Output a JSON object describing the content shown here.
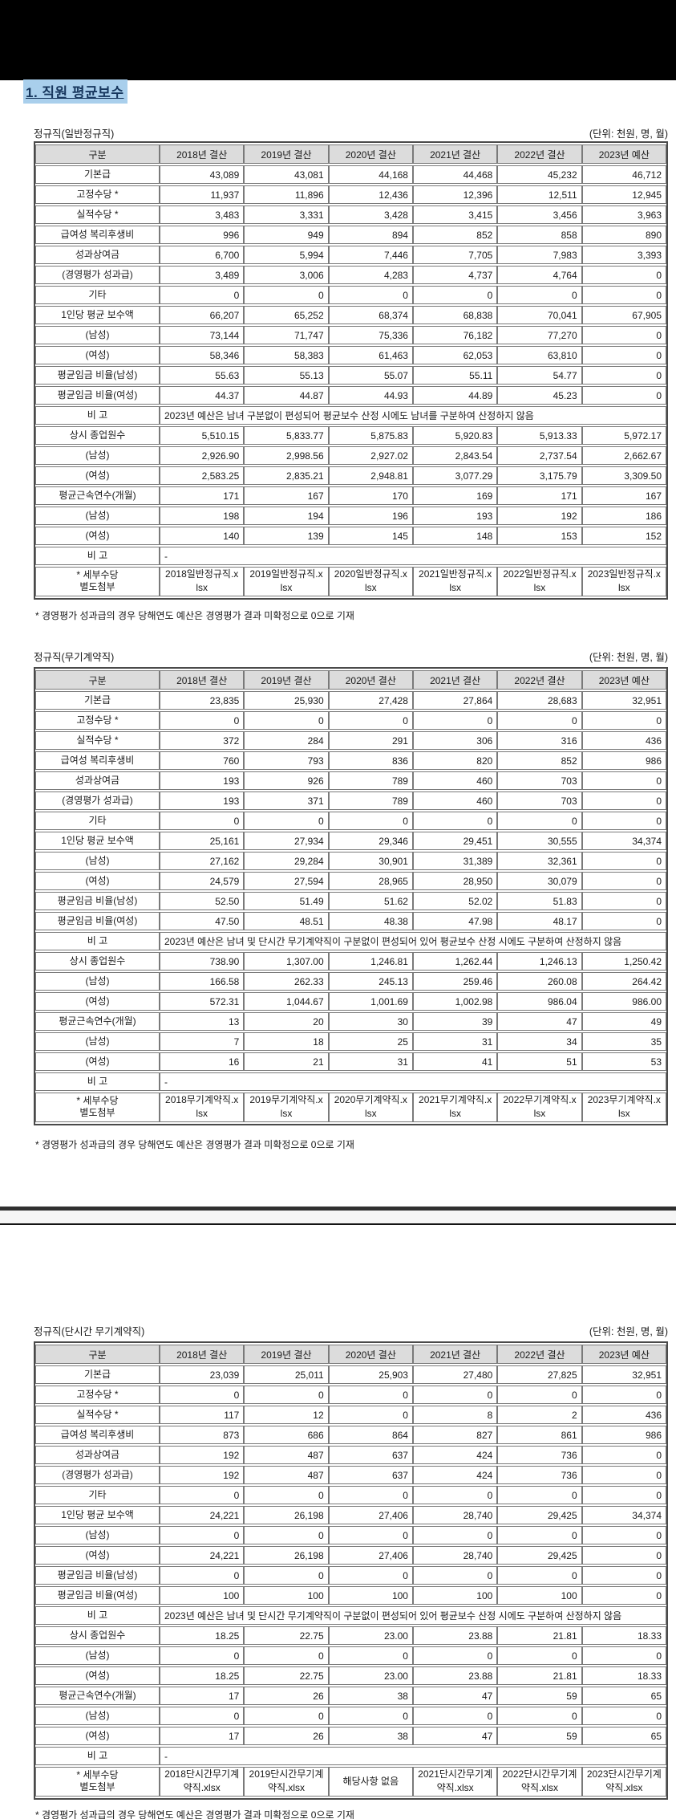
{
  "page": {
    "title": "1. 직원 평균보수",
    "unit_label": "(단위: 천원, 명, 월)",
    "footnote": "* 경영평가 성과급의 경우 당해연도 예산은 경영평가 결과 미확정으로 0으로 기재",
    "colors": {
      "title_highlight": "#a9cfec",
      "title_text": "#17375e",
      "header_bg": "#dcdcdc",
      "border": "#7a7a7a",
      "banner": "#000000"
    }
  },
  "columns": [
    "구분",
    "2018년 결산",
    "2019년 결산",
    "2020년 결산",
    "2021년 결산",
    "2022년 결산",
    "2023년 예산"
  ],
  "tables": [
    {
      "section_label": "정규직(일반정규직)",
      "rows": [
        {
          "label": "기본급",
          "values": [
            "43,089",
            "43,081",
            "44,168",
            "44,468",
            "45,232",
            "46,712"
          ]
        },
        {
          "label": "고정수당 *",
          "values": [
            "11,937",
            "11,896",
            "12,436",
            "12,396",
            "12,511",
            "12,945"
          ]
        },
        {
          "label": "실적수당 *",
          "values": [
            "3,483",
            "3,331",
            "3,428",
            "3,415",
            "3,456",
            "3,963"
          ]
        },
        {
          "label": "급여성 복리후생비",
          "values": [
            "996",
            "949",
            "894",
            "852",
            "858",
            "890"
          ]
        },
        {
          "label": "성과상여금",
          "values": [
            "6,700",
            "5,994",
            "7,446",
            "7,705",
            "7,983",
            "3,393"
          ]
        },
        {
          "label": "(경영평가 성과급)",
          "values": [
            "3,489",
            "3,006",
            "4,283",
            "4,737",
            "4,764",
            "0"
          ]
        },
        {
          "label": "기타",
          "values": [
            "0",
            "0",
            "0",
            "0",
            "0",
            "0"
          ]
        },
        {
          "label": "1인당 평균 보수액",
          "values": [
            "66,207",
            "65,252",
            "68,374",
            "68,838",
            "70,041",
            "67,905"
          ]
        },
        {
          "label": "(남성)",
          "values": [
            "73,144",
            "71,747",
            "75,336",
            "76,182",
            "77,270",
            "0"
          ]
        },
        {
          "label": "(여성)",
          "values": [
            "58,346",
            "58,383",
            "61,463",
            "62,053",
            "63,810",
            "0"
          ]
        },
        {
          "label": "평균임금 비율(남성)",
          "values": [
            "55.63",
            "55.13",
            "55.07",
            "55.11",
            "54.77",
            "0"
          ]
        },
        {
          "label": "평균임금 비율(여성)",
          "values": [
            "44.37",
            "44.87",
            "44.93",
            "44.89",
            "45.23",
            "0"
          ]
        },
        {
          "label": "비 고",
          "note": "2023년 예산은 남녀 구분없이 편성되어 평균보수 산정 시에도 남녀를 구분하여 산정하지 않음"
        },
        {
          "label": "상시 종업원수",
          "values": [
            "5,510.15",
            "5,833.77",
            "5,875.83",
            "5,920.83",
            "5,913.33",
            "5,972.17"
          ]
        },
        {
          "label": "(남성)",
          "values": [
            "2,926.90",
            "2,998.56",
            "2,927.02",
            "2,843.54",
            "2,737.54",
            "2,662.67"
          ]
        },
        {
          "label": "(여성)",
          "values": [
            "2,583.25",
            "2,835.21",
            "2,948.81",
            "3,077.29",
            "3,175.79",
            "3,309.50"
          ]
        },
        {
          "label": "평균근속연수(개월)",
          "values": [
            "171",
            "167",
            "170",
            "169",
            "171",
            "167"
          ]
        },
        {
          "label": "(남성)",
          "values": [
            "198",
            "194",
            "196",
            "193",
            "192",
            "186"
          ]
        },
        {
          "label": "(여성)",
          "values": [
            "140",
            "139",
            "145",
            "148",
            "153",
            "152"
          ]
        },
        {
          "label": "비 고",
          "note": "-"
        },
        {
          "label": "* 세부수당\n별도첨부",
          "files": [
            "2018일반정규직.xlsx",
            "2019일반정규직.xlsx",
            "2020일반정규직.xlsx",
            "2021일반정규직.xlsx",
            "2022일반정규직.xlsx",
            "2023일반정규직.xlsx"
          ]
        }
      ]
    },
    {
      "section_label": "정규직(무기계약직)",
      "rows": [
        {
          "label": "기본급",
          "values": [
            "23,835",
            "25,930",
            "27,428",
            "27,864",
            "28,683",
            "32,951"
          ]
        },
        {
          "label": "고정수당 *",
          "values": [
            "0",
            "0",
            "0",
            "0",
            "0",
            "0"
          ]
        },
        {
          "label": "실적수당 *",
          "values": [
            "372",
            "284",
            "291",
            "306",
            "316",
            "436"
          ]
        },
        {
          "label": "급여성 복리후생비",
          "values": [
            "760",
            "793",
            "836",
            "820",
            "852",
            "986"
          ]
        },
        {
          "label": "성과상여금",
          "values": [
            "193",
            "926",
            "789",
            "460",
            "703",
            "0"
          ]
        },
        {
          "label": "(경영평가 성과급)",
          "values": [
            "193",
            "371",
            "789",
            "460",
            "703",
            "0"
          ]
        },
        {
          "label": "기타",
          "values": [
            "0",
            "0",
            "0",
            "0",
            "0",
            "0"
          ]
        },
        {
          "label": "1인당 평균 보수액",
          "values": [
            "25,161",
            "27,934",
            "29,346",
            "29,451",
            "30,555",
            "34,374"
          ]
        },
        {
          "label": "(남성)",
          "values": [
            "27,162",
            "29,284",
            "30,901",
            "31,389",
            "32,361",
            "0"
          ]
        },
        {
          "label": "(여성)",
          "values": [
            "24,579",
            "27,594",
            "28,965",
            "28,950",
            "30,079",
            "0"
          ]
        },
        {
          "label": "평균임금 비율(남성)",
          "values": [
            "52.50",
            "51.49",
            "51.62",
            "52.02",
            "51.83",
            "0"
          ]
        },
        {
          "label": "평균임금 비율(여성)",
          "values": [
            "47.50",
            "48.51",
            "48.38",
            "47.98",
            "48.17",
            "0"
          ]
        },
        {
          "label": "비 고",
          "note": "2023년 예산은 남녀 및 단시간 무기계약직이 구분없이 편성되어 있어 평균보수 산정 시에도 구분하여 산정하지 않음"
        },
        {
          "label": "상시 종업원수",
          "values": [
            "738.90",
            "1,307.00",
            "1,246.81",
            "1,262.44",
            "1,246.13",
            "1,250.42"
          ]
        },
        {
          "label": "(남성)",
          "values": [
            "166.58",
            "262.33",
            "245.13",
            "259.46",
            "260.08",
            "264.42"
          ]
        },
        {
          "label": "(여성)",
          "values": [
            "572.31",
            "1,044.67",
            "1,001.69",
            "1,002.98",
            "986.04",
            "986.00"
          ]
        },
        {
          "label": "평균근속연수(개월)",
          "values": [
            "13",
            "20",
            "30",
            "39",
            "47",
            "49"
          ]
        },
        {
          "label": "(남성)",
          "values": [
            "7",
            "18",
            "25",
            "31",
            "34",
            "35"
          ]
        },
        {
          "label": "(여성)",
          "values": [
            "16",
            "21",
            "31",
            "41",
            "51",
            "53"
          ]
        },
        {
          "label": "비 고",
          "note": "-"
        },
        {
          "label": "* 세부수당\n별도첨부",
          "files": [
            "2018무기계약직.xlsx",
            "2019무기계약직.xlsx",
            "2020무기계약직.xlsx",
            "2021무기계약직.xlsx",
            "2022무기계약직.xlsx",
            "2023무기계약직.xlsx"
          ]
        }
      ]
    },
    {
      "section_label": "정규직(단시간 무기계약직)",
      "rows": [
        {
          "label": "기본급",
          "values": [
            "23,039",
            "25,011",
            "25,903",
            "27,480",
            "27,825",
            "32,951"
          ]
        },
        {
          "label": "고정수당 *",
          "values": [
            "0",
            "0",
            "0",
            "0",
            "0",
            "0"
          ]
        },
        {
          "label": "실적수당 *",
          "values": [
            "117",
            "12",
            "0",
            "8",
            "2",
            "436"
          ]
        },
        {
          "label": "급여성 복리후생비",
          "values": [
            "873",
            "686",
            "864",
            "827",
            "861",
            "986"
          ]
        },
        {
          "label": "성과상여금",
          "values": [
            "192",
            "487",
            "637",
            "424",
            "736",
            "0"
          ]
        },
        {
          "label": "(경영평가 성과급)",
          "values": [
            "192",
            "487",
            "637",
            "424",
            "736",
            "0"
          ]
        },
        {
          "label": "기타",
          "values": [
            "0",
            "0",
            "0",
            "0",
            "0",
            "0"
          ]
        },
        {
          "label": "1인당 평균 보수액",
          "values": [
            "24,221",
            "26,198",
            "27,406",
            "28,740",
            "29,425",
            "34,374"
          ]
        },
        {
          "label": "(남성)",
          "values": [
            "0",
            "0",
            "0",
            "0",
            "0",
            "0"
          ]
        },
        {
          "label": "(여성)",
          "values": [
            "24,221",
            "26,198",
            "27,406",
            "28,740",
            "29,425",
            "0"
          ]
        },
        {
          "label": "평균임금 비율(남성)",
          "values": [
            "0",
            "0",
            "0",
            "0",
            "0",
            "0"
          ]
        },
        {
          "label": "평균임금 비율(여성)",
          "values": [
            "100",
            "100",
            "100",
            "100",
            "100",
            "0"
          ]
        },
        {
          "label": "비 고",
          "note": "2023년 예산은 남녀 및 단시간 무기계약직이 구분없이 편성되어 있어 평균보수 산정 시에도 구분하여 산정하지 않음"
        },
        {
          "label": "상시 종업원수",
          "values": [
            "18.25",
            "22.75",
            "23.00",
            "23.88",
            "21.81",
            "18.33"
          ]
        },
        {
          "label": "(남성)",
          "values": [
            "0",
            "0",
            "0",
            "0",
            "0",
            "0"
          ]
        },
        {
          "label": "(여성)",
          "values": [
            "18.25",
            "22.75",
            "23.00",
            "23.88",
            "21.81",
            "18.33"
          ]
        },
        {
          "label": "평균근속연수(개월)",
          "values": [
            "17",
            "26",
            "38",
            "47",
            "59",
            "65"
          ]
        },
        {
          "label": "(남성)",
          "values": [
            "0",
            "0",
            "0",
            "0",
            "0",
            "0"
          ]
        },
        {
          "label": "(여성)",
          "values": [
            "17",
            "26",
            "38",
            "47",
            "59",
            "65"
          ]
        },
        {
          "label": "비 고",
          "note": "-"
        },
        {
          "label": "* 세부수당\n별도첨부",
          "files": [
            "2018단시간무기계약직.xlsx",
            "2019단시간무기계약직.xlsx",
            "해당사항 없음",
            "2021단시간무기계약직.xlsx",
            "2022단시간무기계약직.xlsx",
            "2023단시간무기계약직.xlsx"
          ]
        }
      ]
    }
  ]
}
